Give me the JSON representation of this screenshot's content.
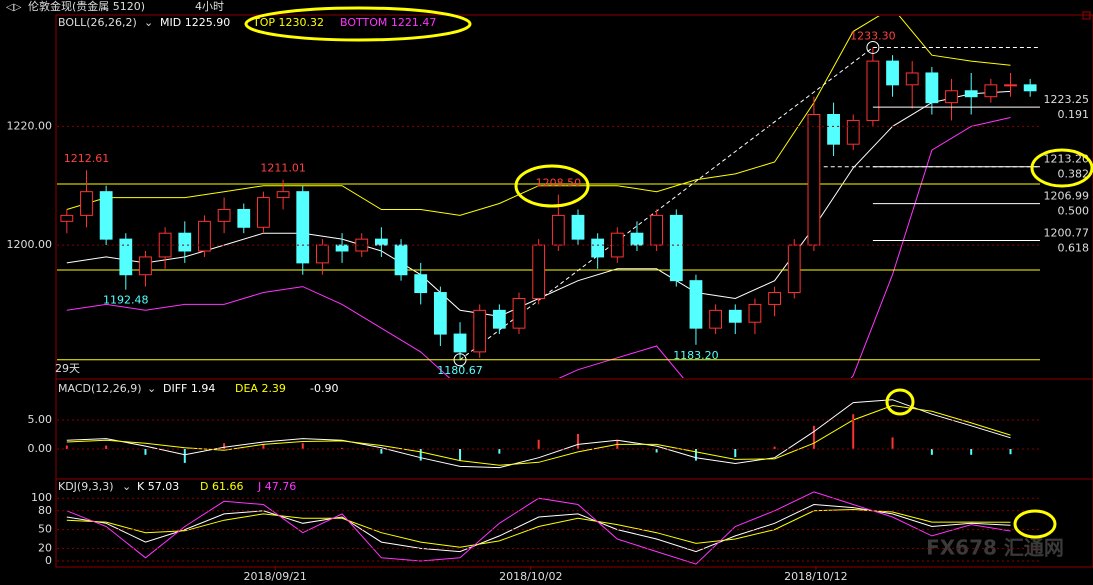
{
  "header": {
    "symbol": "伦敦金现(贵金属 5120)",
    "period": "4小时"
  },
  "watermark": "FX678 汇通网",
  "chart_data": [
    {
      "type": "candlestick",
      "indicator": "BOLL(26,26,2)",
      "legend": [
        {
          "text": "MID 1225.90",
          "color": "#ffffff"
        },
        {
          "text": "TOP 1230.32",
          "color": "#ffff00"
        },
        {
          "text": "BOTTOM 1221.47",
          "color": "#ff33ff"
        }
      ],
      "period_label": "29天",
      "up_color": "#ff3232",
      "down_color": "#54ffff",
      "x": [
        0,
        1,
        2,
        3,
        4,
        5,
        6,
        7,
        8,
        9,
        10,
        11,
        12,
        13,
        14,
        15,
        16,
        17,
        18,
        19,
        20,
        21,
        22,
        23,
        24,
        25,
        26,
        27,
        28,
        29,
        30,
        31,
        32,
        33,
        34,
        35,
        36,
        37,
        38,
        39,
        40,
        41,
        42,
        43,
        44,
        45,
        46,
        47,
        48,
        49
      ],
      "open": [
        1204,
        1205,
        1209,
        1201,
        1195,
        1198,
        1202,
        1199,
        1204,
        1206,
        1203,
        1208,
        1209,
        1197,
        1200,
        1199,
        1201,
        1200,
        1195,
        1192,
        1185,
        1182,
        1189,
        1186,
        1191,
        1200,
        1205,
        1201,
        1198,
        1202,
        1200,
        1205,
        1194,
        1186,
        1189,
        1187,
        1190,
        1192,
        1200,
        1222,
        1217,
        1221,
        1231,
        1227,
        1229,
        1224,
        1226,
        1225,
        1227,
        1227
      ],
      "high": [
        1206,
        1212.61,
        1210,
        1202,
        1199,
        1203,
        1204,
        1205,
        1208,
        1207,
        1209,
        1211.01,
        1210,
        1201,
        1202,
        1202,
        1203,
        1201,
        1197,
        1193,
        1187,
        1190,
        1190,
        1192,
        1201,
        1208.5,
        1206,
        1202,
        1203,
        1204,
        1206,
        1206,
        1195,
        1190,
        1190,
        1191,
        1193,
        1201,
        1225,
        1224,
        1222,
        1233.3,
        1232,
        1231,
        1230,
        1228,
        1229,
        1228,
        1229,
        1228
      ],
      "low": [
        1202,
        1203,
        1200,
        1192.48,
        1193,
        1196,
        1197,
        1198,
        1202,
        1202,
        1202,
        1206,
        1195,
        1195,
        1197,
        1198,
        1198,
        1194,
        1190,
        1183,
        1180.67,
        1181,
        1185,
        1185,
        1190,
        1199,
        1200,
        1196,
        1197,
        1199,
        1199,
        1193,
        1183.2,
        1185,
        1185,
        1185,
        1188,
        1191,
        1199,
        1215,
        1216,
        1220,
        1225,
        1223,
        1222,
        1221,
        1222,
        1224,
        1225,
        1225
      ],
      "close": [
        1205,
        1209,
        1201,
        1195,
        1198,
        1202,
        1199,
        1204,
        1206,
        1203,
        1208,
        1209,
        1197,
        1200,
        1199,
        1201,
        1200,
        1195,
        1192,
        1185,
        1182,
        1189,
        1186,
        1191,
        1200,
        1205,
        1201,
        1198,
        1202,
        1200,
        1205,
        1194,
        1186,
        1189,
        1187,
        1190,
        1192,
        1200,
        1222,
        1217,
        1221,
        1231,
        1227,
        1229,
        1224,
        1226,
        1225,
        1227,
        1227,
        1226
      ],
      "xlim": [
        -0.5,
        49.5
      ],
      "ylim": [
        1177.6,
        1238.6
      ],
      "yticks": [
        {
          "value": 1200,
          "label": "1200.00"
        },
        {
          "value": 1220,
          "label": "1220.00"
        }
      ],
      "bands": {
        "x": [
          0,
          2,
          4,
          6,
          8,
          10,
          12,
          14,
          16,
          18,
          20,
          22,
          24,
          26,
          28,
          30,
          32,
          34,
          36,
          38,
          40,
          42,
          44,
          46,
          48
        ],
        "series": [
          {
            "color": "#ffffff",
            "values": [
              1197,
              1198,
              1197,
              1198,
              1200,
              1202,
              1202,
              1201,
              1199,
              1195,
              1189,
              1188,
              1191,
              1194,
              1196,
              1196,
              1192,
              1191,
              1194,
              1203,
              1213,
              1220,
              1224,
              1225.5,
              1225.9
            ]
          },
          {
            "color": "#ffff00",
            "values": [
              1206,
              1208,
              1208,
              1208,
              1209,
              1210,
              1210,
              1210,
              1206,
              1206,
              1205,
              1207,
              1210,
              1210,
              1210,
              1209,
              1211,
              1212,
              1214,
              1224,
              1236,
              1240,
              1232,
              1231,
              1230.3
            ]
          },
          {
            "color": "#ff33ff",
            "values": [
              1189,
              1190,
              1189,
              1190,
              1190,
              1192,
              1193,
              1190,
              1186,
              1182,
              1176,
              1174,
              1176,
              1179,
              1181,
              1183,
              1175,
              1170,
              1170,
              1170,
              1178,
              1195,
              1216,
              1220,
              1221.5
            ]
          }
        ]
      },
      "trendline": {
        "x": [
          20,
          41
        ],
        "values": [
          1180.67,
          1233.3
        ],
        "color": "#ffffff"
      },
      "levels": [
        {
          "value": 1210.3,
          "color": "#ffff00",
          "style": "solid",
          "x_start": -0.5
        },
        {
          "value": 1195.8,
          "color": "#ffff00",
          "style": "solid",
          "x_start": -0.5
        },
        {
          "value": 1180.67,
          "color": "#ffff00",
          "style": "solid",
          "x_start": -0.5
        },
        {
          "value": 1233.3,
          "color": "#ffffff",
          "style": "dashed",
          "x_start": 41
        },
        {
          "value": 1213.2,
          "color": "#ffffff",
          "style": "dashed",
          "x_start": 38.5
        }
      ],
      "fib_levels": [
        {
          "value": 1223.25,
          "label": "1223.25",
          "ratio": "0.191"
        },
        {
          "value": 1213.2,
          "label": "1213.20",
          "ratio": "0.382"
        },
        {
          "value": 1206.99,
          "label": "1206.99",
          "ratio": "0.500"
        },
        {
          "value": 1200.77,
          "label": "1200.77",
          "ratio": "0.618"
        }
      ],
      "fib_x_start": 41,
      "annotations": [
        {
          "x": 1,
          "value": 1212.61,
          "label": "1212.61",
          "color": "#ff4040",
          "position": "above"
        },
        {
          "x": 11,
          "value": 1211.01,
          "label": "1211.01",
          "color": "#ff4040",
          "position": "above"
        },
        {
          "x": 3,
          "value": 1192.48,
          "label": "1192.48",
          "color": "#54ffff",
          "position": "below"
        },
        {
          "x": 25,
          "value": 1208.5,
          "label": "1208.50",
          "color": "#ff4040",
          "position": "above"
        },
        {
          "x": 20,
          "value": 1180.67,
          "label": "1180.67",
          "color": "#54ffff",
          "position": "below"
        },
        {
          "x": 32,
          "value": 1183.2,
          "label": "1183.20",
          "color": "#54ffff",
          "position": "below"
        },
        {
          "x": 41,
          "value": 1233.3,
          "label": "1233.30",
          "color": "#ff4040",
          "position": "above"
        }
      ]
    },
    {
      "type": "macd",
      "indicator": "MACD(12,26,9)",
      "legend": [
        {
          "text": "DIFF 1.94",
          "color": "#ffffff"
        },
        {
          "text": "DEA 2.39",
          "color": "#ffff00"
        },
        {
          "text": "-0.90",
          "color": "#ffffff"
        }
      ],
      "xlim": [
        -0.5,
        49.5
      ],
      "ylim": [
        -5,
        11.9
      ],
      "yticks": [
        {
          "value": 0,
          "label": "0.00"
        },
        {
          "value": 5,
          "label": "5.00"
        }
      ],
      "x": [
        0,
        2,
        4,
        6,
        8,
        10,
        12,
        14,
        16,
        18,
        20,
        22,
        24,
        26,
        28,
        30,
        32,
        34,
        36,
        38,
        40,
        42,
        44,
        46,
        48
      ],
      "histogram": [
        0.6,
        0.6,
        -1,
        -2.4,
        1,
        0.8,
        1,
        0.2,
        -0.8,
        -2,
        -2,
        -0.8,
        1.6,
        2.6,
        1.4,
        -0.6,
        -2,
        -1.4,
        0.4,
        4,
        6,
        2,
        -1,
        -1,
        -0.9
      ],
      "up_color": "#ff3232",
      "down_color": "#54ffff",
      "series": [
        {
          "color": "#ffffff",
          "values": [
            1.5,
            1.8,
            0.5,
            -1,
            0.3,
            1.2,
            1.8,
            1.5,
            0.2,
            -1.5,
            -3,
            -3.2,
            -1.5,
            0.8,
            1.5,
            0.5,
            -1.5,
            -2.5,
            -1.5,
            3,
            8,
            8.5,
            6,
            4,
            1.94
          ]
        },
        {
          "color": "#ffff00",
          "values": [
            1.2,
            1.5,
            1,
            0.2,
            -0.2,
            0.8,
            1.3,
            1.4,
            0.6,
            -0.5,
            -2,
            -2.8,
            -2.3,
            -0.5,
            0.8,
            0.8,
            -0.5,
            -1.8,
            -1.7,
            1,
            5,
            7.5,
            6.5,
            4.5,
            2.39
          ]
        }
      ]
    },
    {
      "type": "line",
      "indicator": "KDJ(9,3,3)",
      "legend": [
        {
          "text": "K 57.03",
          "color": "#ffffff"
        },
        {
          "text": "D 61.66",
          "color": "#ffff00"
        },
        {
          "text": "J 47.76",
          "color": "#ff33ff"
        }
      ],
      "xlim": [
        -0.5,
        49.5
      ],
      "ylim": [
        -8,
        129
      ],
      "yticks": [
        0,
        20,
        50,
        80,
        100
      ],
      "x": [
        0,
        2,
        4,
        6,
        8,
        10,
        12,
        14,
        16,
        18,
        20,
        22,
        24,
        26,
        28,
        30,
        32,
        34,
        36,
        38,
        40,
        42,
        44,
        46,
        48
      ],
      "series": [
        {
          "color": "#ffffff",
          "values": [
            70,
            60,
            30,
            50,
            75,
            80,
            60,
            70,
            30,
            20,
            15,
            40,
            70,
            75,
            50,
            35,
            15,
            40,
            60,
            90,
            85,
            75,
            55,
            60,
            57.03
          ]
        },
        {
          "color": "#ffff00",
          "values": [
            65,
            62,
            45,
            48,
            65,
            75,
            68,
            68,
            45,
            30,
            22,
            32,
            55,
            68,
            58,
            45,
            28,
            35,
            50,
            80,
            82,
            78,
            62,
            62,
            61.66
          ]
        },
        {
          "color": "#ff33ff",
          "values": [
            80,
            55,
            5,
            55,
            95,
            90,
            45,
            75,
            5,
            0,
            5,
            60,
            100,
            90,
            35,
            15,
            -5,
            55,
            80,
            110,
            90,
            70,
            40,
            58,
            47.76
          ]
        }
      ],
      "xticks": [
        {
          "value": 10.6,
          "label": "2018/09/21"
        },
        {
          "value": 23.6,
          "label": "2018/10/02"
        },
        {
          "value": 38.1,
          "label": "2018/10/12"
        }
      ]
    }
  ]
}
